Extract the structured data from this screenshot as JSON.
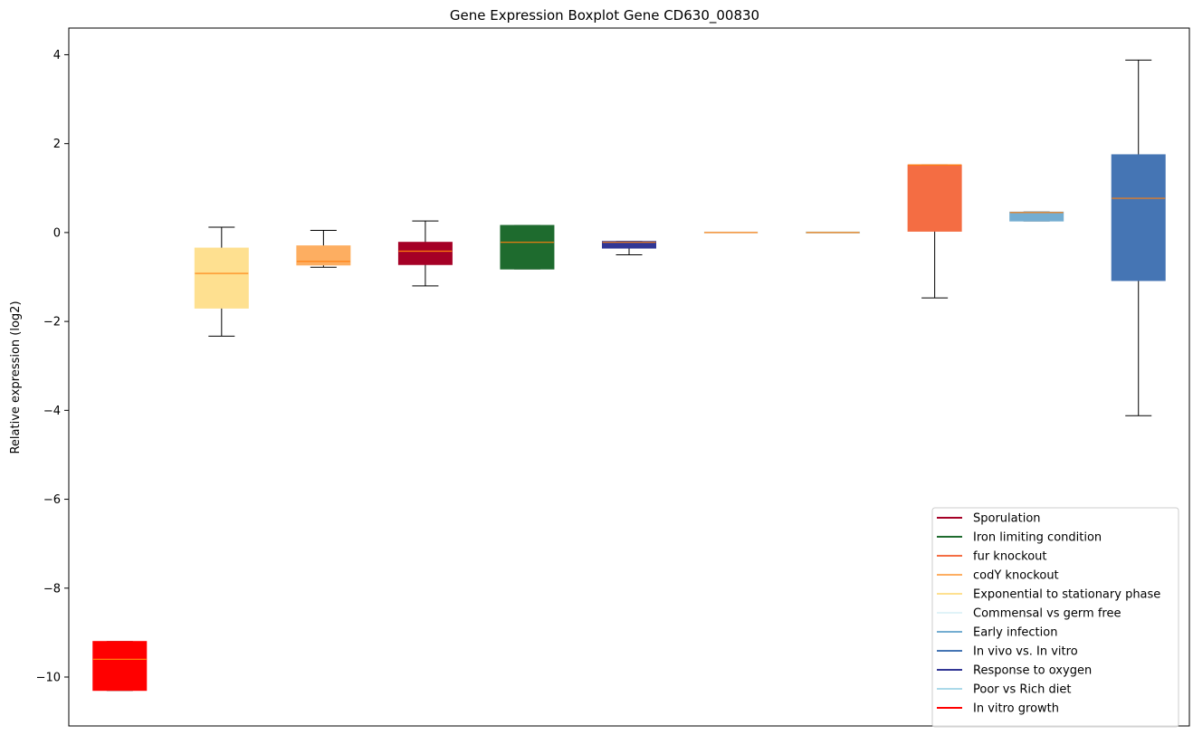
{
  "chart_data": {
    "type": "boxplot",
    "title": "Gene Expression Boxplot Gene CD630_00830",
    "xlabel": "",
    "ylabel": "Relative expression (log2)",
    "ylim": [
      -11.1,
      4.6
    ],
    "yticks": [
      {
        "value": 4,
        "label": "4"
      },
      {
        "value": 2,
        "label": "2"
      },
      {
        "value": 0,
        "label": "0"
      },
      {
        "value": -2,
        "label": "−2"
      },
      {
        "value": -4,
        "label": "−4"
      },
      {
        "value": -6,
        "label": "−6"
      },
      {
        "value": -8,
        "label": "−8"
      },
      {
        "value": -10,
        "label": "−10"
      }
    ],
    "grid": false,
    "legend_position": "lower-right",
    "median_color": "#ff7f0e",
    "boxes": [
      {
        "color": "#ff0000",
        "q1": -10.3,
        "median": -9.6,
        "q3": -9.2,
        "whisker_low": -10.3,
        "whisker_high": -9.2
      },
      {
        "color": "#fee090",
        "q1": -1.7,
        "median": -0.92,
        "q3": -0.35,
        "whisker_low": -2.33,
        "whisker_high": 0.12
      },
      {
        "color": "#fdae61",
        "q1": -0.73,
        "median": -0.65,
        "q3": -0.3,
        "whisker_low": -0.78,
        "whisker_high": 0.05
      },
      {
        "color": "#a50026",
        "q1": -0.72,
        "median": -0.42,
        "q3": -0.22,
        "whisker_low": -1.2,
        "whisker_high": 0.26
      },
      {
        "color": "#1e6b2e",
        "q1": -0.82,
        "median": -0.22,
        "q3": 0.16,
        "whisker_low": -0.82,
        "whisker_high": 0.16
      },
      {
        "color": "#313695",
        "q1": -0.35,
        "median": -0.22,
        "q3": -0.2,
        "whisker_low": -0.5,
        "whisker_high": -0.2
      },
      {
        "color": "#e0f3f8",
        "q1": 0.0,
        "median": 0.0,
        "q3": 0.0,
        "whisker_low": 0.0,
        "whisker_high": 0.0
      },
      {
        "color": "#abd9e9",
        "q1": 0.0,
        "median": 0.0,
        "q3": 0.0,
        "whisker_low": 0.0,
        "whisker_high": 0.0
      },
      {
        "color": "#f46d43",
        "q1": 0.03,
        "median": 1.52,
        "q3": 1.52,
        "whisker_low": -1.47,
        "whisker_high": 1.52
      },
      {
        "color": "#74add1",
        "q1": 0.26,
        "median": 0.45,
        "q3": 0.46,
        "whisker_low": 0.26,
        "whisker_high": 0.46
      },
      {
        "color": "#4575b4",
        "q1": -1.08,
        "median": 0.77,
        "q3": 1.75,
        "whisker_low": -4.12,
        "whisker_high": 3.88
      }
    ],
    "legend": [
      {
        "label": "Sporulation",
        "color": "#a50026"
      },
      {
        "label": "Iron limiting condition",
        "color": "#1e6b2e"
      },
      {
        "label": "fur knockout",
        "color": "#f46d43"
      },
      {
        "label": "codY knockout",
        "color": "#fdae61"
      },
      {
        "label": "Exponential to stationary phase",
        "color": "#fee090"
      },
      {
        "label": "Commensal vs germ free",
        "color": "#e0f3f8"
      },
      {
        "label": "Early infection",
        "color": "#74add1"
      },
      {
        "label": "In vivo vs. In vitro",
        "color": "#4575b4"
      },
      {
        "label": "Response to oxygen",
        "color": "#313695"
      },
      {
        "label": "Poor vs Rich diet",
        "color": "#abd9e9"
      },
      {
        "label": "In vitro growth",
        "color": "#ff0000"
      }
    ]
  }
}
